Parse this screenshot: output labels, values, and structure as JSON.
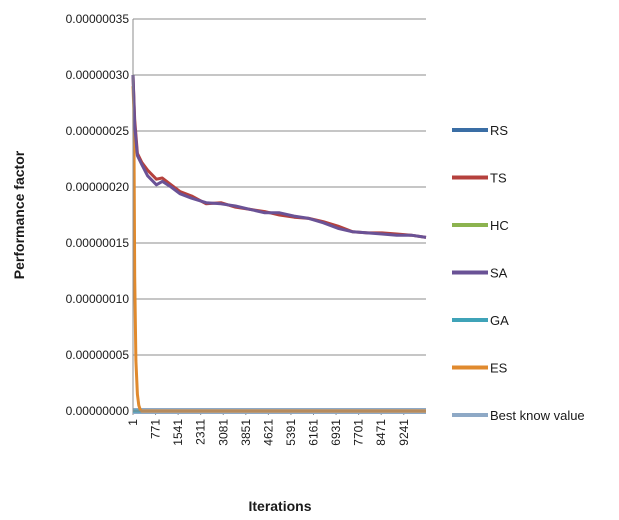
{
  "chart_data": {
    "type": "line",
    "title": "",
    "xlabel": "Iterations",
    "ylabel": "Performance factor",
    "ylim": [
      0,
      3.5e-07
    ],
    "xlim": [
      1,
      10000
    ],
    "y_ticks": [
      "0.00000000",
      "0.00000005",
      "0.00000010",
      "0.00000015",
      "0.00000020",
      "0.00000025",
      "0.00000030",
      "0.00000035"
    ],
    "y_tick_values": [
      0,
      5e-08,
      1e-07,
      1.5e-07,
      2e-07,
      2.5e-07,
      3e-07,
      3.5e-07
    ],
    "x_ticks": [
      "1",
      "771",
      "1541",
      "2311",
      "3081",
      "3851",
      "4621",
      "5391",
      "6161",
      "6931",
      "7701",
      "8471",
      "9241"
    ],
    "x_tick_values": [
      1,
      771,
      1541,
      2311,
      3081,
      3851,
      4621,
      5391,
      6161,
      6931,
      7701,
      8471,
      9241
    ],
    "grid": true,
    "legend_position": "right",
    "series": [
      {
        "name": "RS",
        "color": "#3a6ea5",
        "x": [
          1,
          150,
          300,
          10000
        ],
        "y": [
          0.0,
          0.0,
          0.0,
          0.0
        ]
      },
      {
        "name": "TS",
        "color": "#b5413d",
        "x": [
          1,
          60,
          150,
          300,
          500,
          800,
          1000,
          1300,
          1600,
          2000,
          2500,
          3000,
          3500,
          4000,
          4500,
          5000,
          5500,
          6000,
          6500,
          7000,
          7500,
          8000,
          8500,
          9000,
          9500,
          10000
        ],
        "y": [
          3e-07,
          2.6e-07,
          2.3e-07,
          2.22e-07,
          2.15e-07,
          2.07e-07,
          2.08e-07,
          2.02e-07,
          1.96e-07,
          1.92e-07,
          1.85e-07,
          1.86e-07,
          1.82e-07,
          1.8e-07,
          1.78e-07,
          1.75e-07,
          1.73e-07,
          1.72e-07,
          1.69e-07,
          1.65e-07,
          1.6e-07,
          1.59e-07,
          1.59e-07,
          1.58e-07,
          1.57e-07,
          1.55e-07
        ]
      },
      {
        "name": "HC",
        "color": "#8cb34f",
        "x": [
          1,
          150,
          300,
          10000
        ],
        "y": [
          0.0,
          0.0,
          0.0,
          0.0
        ]
      },
      {
        "name": "SA",
        "color": "#6a5296",
        "x": [
          1,
          60,
          150,
          300,
          500,
          800,
          1000,
          1300,
          1600,
          2000,
          2500,
          3000,
          3500,
          4000,
          4500,
          5000,
          5500,
          6000,
          6500,
          7000,
          7500,
          8000,
          8500,
          9000,
          9500,
          10000
        ],
        "y": [
          3e-07,
          2.55e-07,
          2.28e-07,
          2.2e-07,
          2.1e-07,
          2.02e-07,
          2.05e-07,
          2e-07,
          1.94e-07,
          1.9e-07,
          1.86e-07,
          1.85e-07,
          1.83e-07,
          1.8e-07,
          1.77e-07,
          1.77e-07,
          1.74e-07,
          1.72e-07,
          1.68e-07,
          1.63e-07,
          1.6e-07,
          1.59e-07,
          1.58e-07,
          1.57e-07,
          1.57e-07,
          1.55e-07
        ]
      },
      {
        "name": "GA",
        "color": "#3fa3b8",
        "x": [
          1,
          150,
          300,
          10000
        ],
        "y": [
          0.0,
          0.0,
          0.0,
          0.0
        ]
      },
      {
        "name": "ES",
        "color": "#e08a2e",
        "x": [
          1,
          30,
          60,
          100,
          150,
          200,
          250,
          300,
          400,
          500,
          10000
        ],
        "y": [
          2.9e-07,
          2.7e-07,
          1.2e-07,
          4.5e-08,
          1.5e-08,
          5e-09,
          1e-09,
          0.0,
          0.0,
          0.0,
          0.0
        ]
      },
      {
        "name": "Best know value",
        "color": "#8ea9c6",
        "x": [
          1,
          10000
        ],
        "y": [
          0.0,
          0.0
        ]
      }
    ]
  }
}
